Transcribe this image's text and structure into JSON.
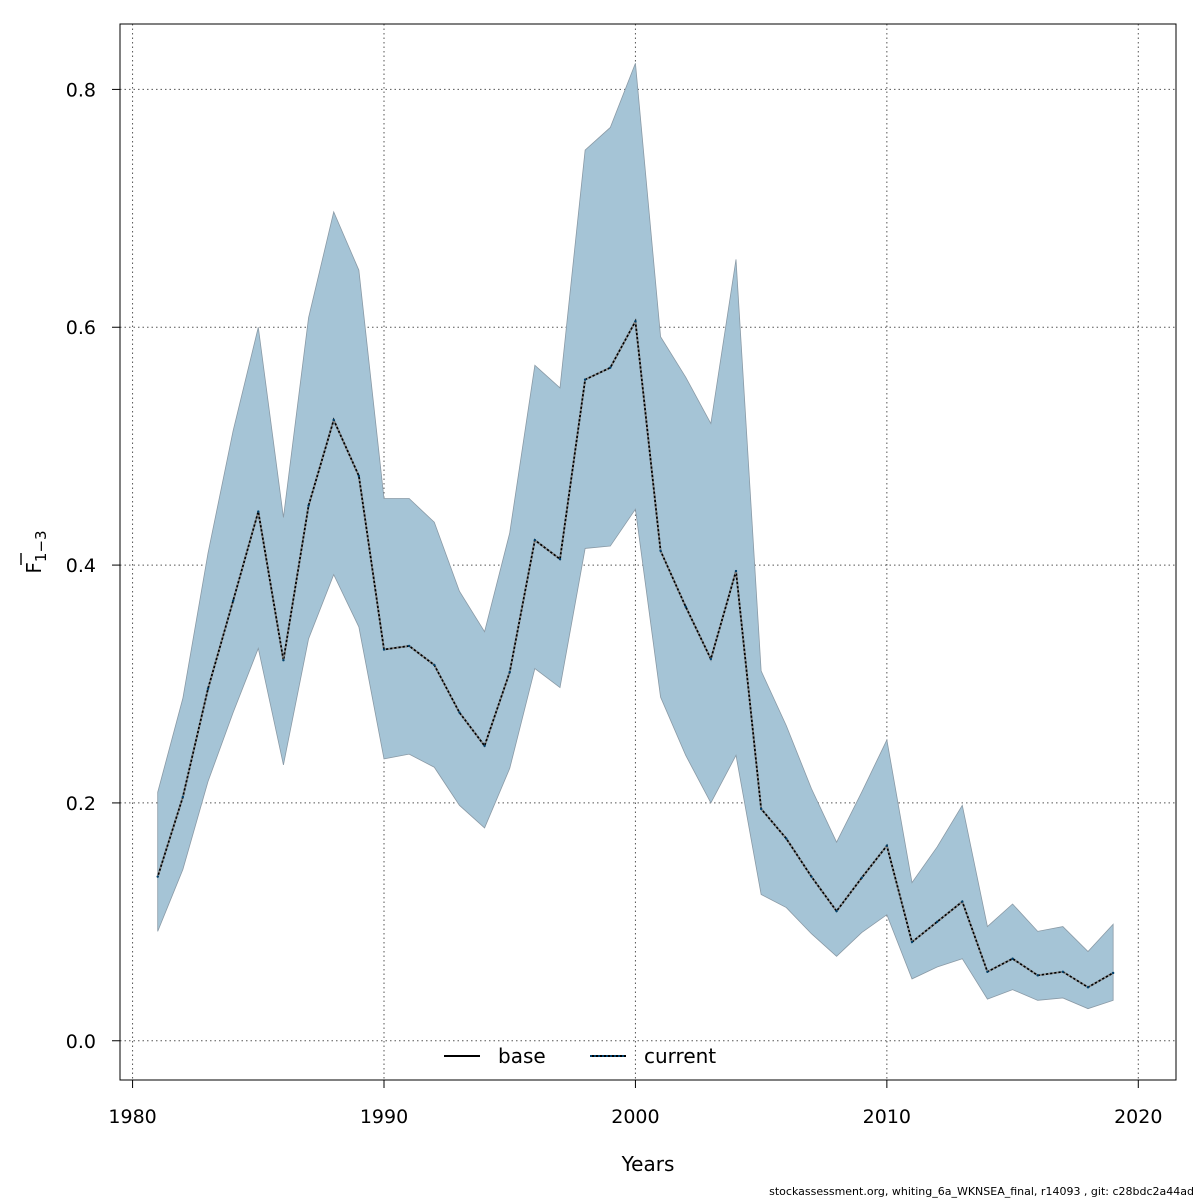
{
  "chart_data": {
    "type": "area",
    "title": "",
    "xlabel": "Years",
    "ylabel_main": "F",
    "ylabel_sub": "1−3",
    "xlim": [
      1979.5,
      2021.5
    ],
    "ylim": [
      -0.033,
      0.855
    ],
    "x_ticks": [
      1980,
      1990,
      2000,
      2010,
      2020
    ],
    "y_ticks": [
      0.0,
      0.2,
      0.4,
      0.6,
      0.8
    ],
    "y_tick_labels": [
      "0.0",
      "0.2",
      "0.4",
      "0.6",
      "0.8"
    ],
    "grid": true,
    "band_color": "#a5c4d6",
    "band_stroke": "#8a9aa6",
    "x": [
      1981,
      1982,
      1983,
      1984,
      1985,
      1986,
      1987,
      1988,
      1989,
      1990,
      1991,
      1992,
      1993,
      1994,
      1995,
      1996,
      1997,
      1998,
      1999,
      2000,
      2001,
      2002,
      2003,
      2004,
      2005,
      2006,
      2007,
      2008,
      2009,
      2010,
      2011,
      2012,
      2013,
      2014,
      2015,
      2016,
      2017,
      2018,
      2019
    ],
    "lower": [
      0.092,
      0.144,
      0.218,
      0.276,
      0.33,
      0.232,
      0.338,
      0.392,
      0.348,
      0.237,
      0.241,
      0.23,
      0.198,
      0.179,
      0.229,
      0.313,
      0.297,
      0.414,
      0.416,
      0.447,
      0.289,
      0.24,
      0.2,
      0.24,
      0.123,
      0.112,
      0.09,
      0.071,
      0.091,
      0.106,
      0.052,
      0.062,
      0.069,
      0.035,
      0.043,
      0.034,
      0.036,
      0.027,
      0.034
    ],
    "upper": [
      0.209,
      0.288,
      0.41,
      0.513,
      0.6,
      0.44,
      0.608,
      0.697,
      0.648,
      0.456,
      0.456,
      0.436,
      0.378,
      0.344,
      0.427,
      0.568,
      0.549,
      0.749,
      0.768,
      0.822,
      0.592,
      0.558,
      0.519,
      0.657,
      0.311,
      0.265,
      0.212,
      0.167,
      0.209,
      0.253,
      0.133,
      0.163,
      0.198,
      0.096,
      0.115,
      0.092,
      0.096,
      0.075,
      0.098
    ],
    "series": [
      {
        "name": "current",
        "style": "dotted",
        "color": "#00406b",
        "values": [
          0.138,
          0.205,
          0.296,
          0.37,
          0.445,
          0.32,
          0.45,
          0.522,
          0.475,
          0.329,
          0.332,
          0.316,
          0.276,
          0.248,
          0.31,
          0.421,
          0.405,
          0.556,
          0.566,
          0.605,
          0.412,
          0.365,
          0.321,
          0.395,
          0.195,
          0.17,
          0.138,
          0.109,
          0.137,
          0.164,
          0.083,
          0.1,
          0.117,
          0.058,
          0.069,
          0.055,
          0.058,
          0.045,
          0.057
        ]
      }
    ],
    "legend": {
      "placement": "bottom-center",
      "entries": [
        {
          "label": "base",
          "style": "solid",
          "color": "#000000"
        },
        {
          "label": "current",
          "style": "dotted",
          "color": "#00406b"
        }
      ]
    }
  },
  "footer": "stockassessment.org, whiting_6a_WKNSEA_final, r14093 , git: c28bdc2a44ad"
}
